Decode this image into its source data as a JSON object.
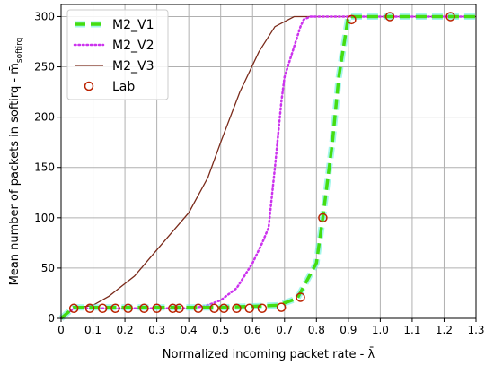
{
  "chart_data": {
    "type": "line",
    "xlabel": "Normalized incoming packet rate - λ̄",
    "ylabel": "Mean number of packets in softirq - m̄",
    "ylabel_subscript": "softirq",
    "xlim": [
      0,
      1.3
    ],
    "ylim": [
      0,
      312
    ],
    "xticks": [
      0,
      0.1,
      0.2,
      0.3,
      0.4,
      0.5,
      0.6,
      0.7,
      0.8,
      0.9,
      1.0,
      1.1,
      1.2,
      1.3
    ],
    "xtick_labels": [
      "0",
      "0.1",
      "0.2",
      "0.3",
      "0.4",
      "0.5",
      "0.6",
      "0.7",
      "0.8",
      "0.9",
      "1.0",
      "1.1",
      "1.2",
      "1.3"
    ],
    "yticks": [
      0,
      50,
      100,
      150,
      200,
      250,
      300
    ],
    "ytick_labels": [
      "0",
      "50",
      "100",
      "150",
      "200",
      "250",
      "300"
    ],
    "grid": true,
    "legend_position": "top-left",
    "series": [
      {
        "name": "M2_V1",
        "style": "dashed",
        "color": "#44dd11",
        "glow": "#66eedd",
        "x": [
          0,
          0.04,
          0.1,
          0.2,
          0.3,
          0.4,
          0.5,
          0.6,
          0.68,
          0.74,
          0.8,
          0.82,
          0.85,
          0.87,
          0.9,
          0.91,
          1.0,
          1.1,
          1.2,
          1.3
        ],
        "y": [
          0,
          11,
          11,
          11,
          11,
          11,
          11,
          12,
          13,
          20,
          55,
          100,
          175,
          240,
          300,
          300,
          300,
          300,
          300,
          300
        ]
      },
      {
        "name": "M2_V2",
        "style": "dotted",
        "color": "#cc33ee",
        "x": [
          0,
          0.04,
          0.1,
          0.2,
          0.3,
          0.4,
          0.45,
          0.5,
          0.55,
          0.6,
          0.63,
          0.65,
          0.67,
          0.69,
          0.7,
          0.72,
          0.75,
          0.76,
          0.78,
          0.8,
          1.3
        ],
        "y": [
          0,
          10,
          10,
          10,
          10,
          10,
          12,
          18,
          30,
          55,
          75,
          90,
          150,
          215,
          240,
          260,
          290,
          297,
          300,
          300,
          300
        ]
      },
      {
        "name": "M2_V3",
        "style": "solid",
        "color": "#7a2a1a",
        "x": [
          0,
          0.04,
          0.1,
          0.15,
          0.23,
          0.3,
          0.4,
          0.46,
          0.5,
          0.56,
          0.62,
          0.67,
          0.73,
          0.8,
          1.3
        ],
        "y": [
          0,
          10,
          13,
          22,
          42,
          68,
          105,
          140,
          175,
          225,
          265,
          290,
          300,
          300,
          300
        ]
      },
      {
        "name": "Lab",
        "style": "marker",
        "color": "#bb2200",
        "x": [
          0.04,
          0.09,
          0.13,
          0.17,
          0.21,
          0.26,
          0.3,
          0.35,
          0.37,
          0.43,
          0.48,
          0.51,
          0.55,
          0.59,
          0.63,
          0.69,
          0.75,
          0.82,
          0.91,
          1.03,
          1.22
        ],
        "y": [
          10,
          10,
          10,
          10,
          10,
          10,
          10,
          10,
          10,
          10,
          10,
          10,
          10,
          10,
          10,
          11,
          21,
          100,
          297,
          300,
          300
        ]
      }
    ]
  }
}
